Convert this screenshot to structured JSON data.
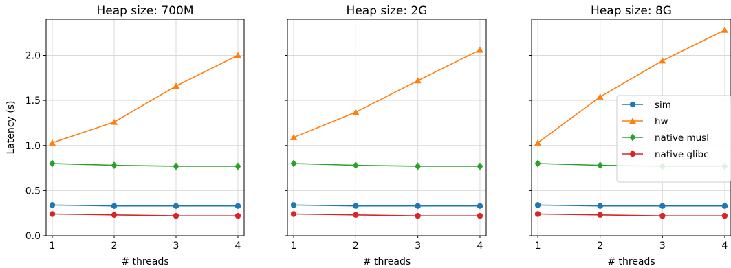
{
  "chart_data": [
    {
      "type": "line",
      "title": "Heap size: 700M",
      "xlabel": "# threads",
      "ylabel": "Latency (s)",
      "x": [
        1,
        2,
        3,
        4
      ],
      "xlim": [
        0.9,
        4.1
      ],
      "ylim": [
        0,
        2.4
      ],
      "yticks": [
        0.0,
        0.5,
        1.0,
        1.5,
        2.0
      ],
      "ytick_labels": [
        "0.0",
        "0.5",
        "1.0",
        "1.5",
        "2.0"
      ],
      "grid": true,
      "series": [
        {
          "name": "sim",
          "color": "#1f77b4",
          "marker": "circle",
          "values": [
            0.34,
            0.33,
            0.33,
            0.33
          ]
        },
        {
          "name": "hw",
          "color": "#ff7f0e",
          "marker": "triangle",
          "values": [
            1.03,
            1.26,
            1.66,
            2.0
          ]
        },
        {
          "name": "native musl",
          "color": "#2ca02c",
          "marker": "diamond",
          "values": [
            0.8,
            0.78,
            0.77,
            0.77
          ]
        },
        {
          "name": "native glibc",
          "color": "#d62728",
          "marker": "circle",
          "values": [
            0.24,
            0.23,
            0.22,
            0.22
          ]
        }
      ]
    },
    {
      "type": "line",
      "title": "Heap size: 2G",
      "xlabel": "# threads",
      "ylabel": "",
      "x": [
        1,
        2,
        3,
        4
      ],
      "xlim": [
        0.9,
        4.1
      ],
      "ylim": [
        0,
        2.4
      ],
      "yticks": [
        0.0,
        0.5,
        1.0,
        1.5,
        2.0
      ],
      "ytick_labels": [],
      "grid": true,
      "series": [
        {
          "name": "sim",
          "color": "#1f77b4",
          "marker": "circle",
          "values": [
            0.34,
            0.33,
            0.33,
            0.33
          ]
        },
        {
          "name": "hw",
          "color": "#ff7f0e",
          "marker": "triangle",
          "values": [
            1.09,
            1.37,
            1.72,
            2.06
          ]
        },
        {
          "name": "native musl",
          "color": "#2ca02c",
          "marker": "diamond",
          "values": [
            0.8,
            0.78,
            0.77,
            0.77
          ]
        },
        {
          "name": "native glibc",
          "color": "#d62728",
          "marker": "circle",
          "values": [
            0.24,
            0.23,
            0.22,
            0.22
          ]
        }
      ]
    },
    {
      "type": "line",
      "title": "Heap size: 8G",
      "xlabel": "# threads",
      "ylabel": "",
      "x": [
        1,
        2,
        3,
        4
      ],
      "xlim": [
        0.9,
        4.1
      ],
      "ylim": [
        0,
        2.4
      ],
      "yticks": [
        0.0,
        0.5,
        1.0,
        1.5,
        2.0
      ],
      "ytick_labels": [],
      "grid": true,
      "legend": "center-right",
      "series": [
        {
          "name": "sim",
          "color": "#1f77b4",
          "marker": "circle",
          "values": [
            0.34,
            0.33,
            0.33,
            0.33
          ]
        },
        {
          "name": "hw",
          "color": "#ff7f0e",
          "marker": "triangle",
          "values": [
            1.03,
            1.54,
            1.94,
            2.28
          ]
        },
        {
          "name": "native musl",
          "color": "#2ca02c",
          "marker": "diamond",
          "values": [
            0.8,
            0.78,
            0.77,
            0.77
          ]
        },
        {
          "name": "native glibc",
          "color": "#d62728",
          "marker": "circle",
          "values": [
            0.24,
            0.23,
            0.22,
            0.22
          ]
        }
      ]
    }
  ]
}
